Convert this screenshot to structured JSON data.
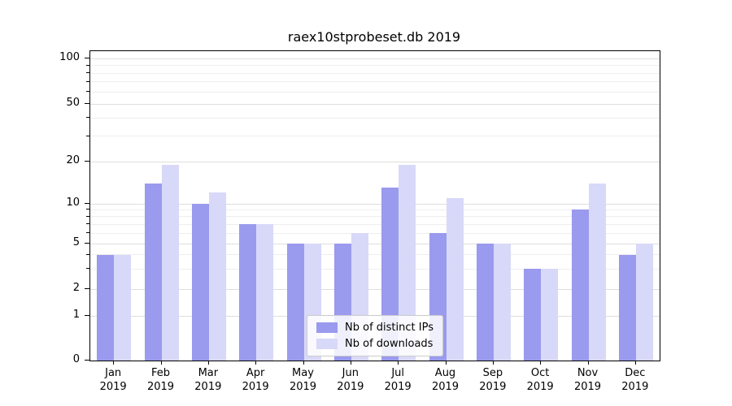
{
  "chart_data": {
    "type": "bar",
    "title": "raex10stprobeset.db 2019",
    "months": [
      "Jan",
      "Feb",
      "Mar",
      "Apr",
      "May",
      "Jun",
      "Jul",
      "Aug",
      "Sep",
      "Oct",
      "Nov",
      "Dec"
    ],
    "year": "2019",
    "series": [
      {
        "name": "Nb of distinct IPs",
        "color": "#9a9aee",
        "values": [
          4,
          14,
          10,
          7,
          5,
          5,
          13,
          6,
          5,
          3,
          9,
          4
        ]
      },
      {
        "name": "Nb of downloads",
        "color": "#d8d8f8",
        "values": [
          4,
          19,
          12,
          7,
          5,
          6,
          19,
          11,
          5,
          3,
          14,
          5
        ]
      }
    ],
    "yscale": "log-like (symlog with 0 baseline)",
    "ylim": [
      0,
      100
    ],
    "yticks": [
      100,
      50,
      20,
      10,
      5,
      2,
      1,
      0
    ],
    "minor_yticks": [
      3,
      4,
      6,
      7,
      8,
      9,
      30,
      40,
      60,
      70,
      80,
      90
    ],
    "grid": true,
    "legend_position": "lower center"
  },
  "colors": {
    "grid_major": "#dedede",
    "grid_minor": "#eeeeee",
    "axis": "#000000",
    "background": "#ffffff"
  }
}
